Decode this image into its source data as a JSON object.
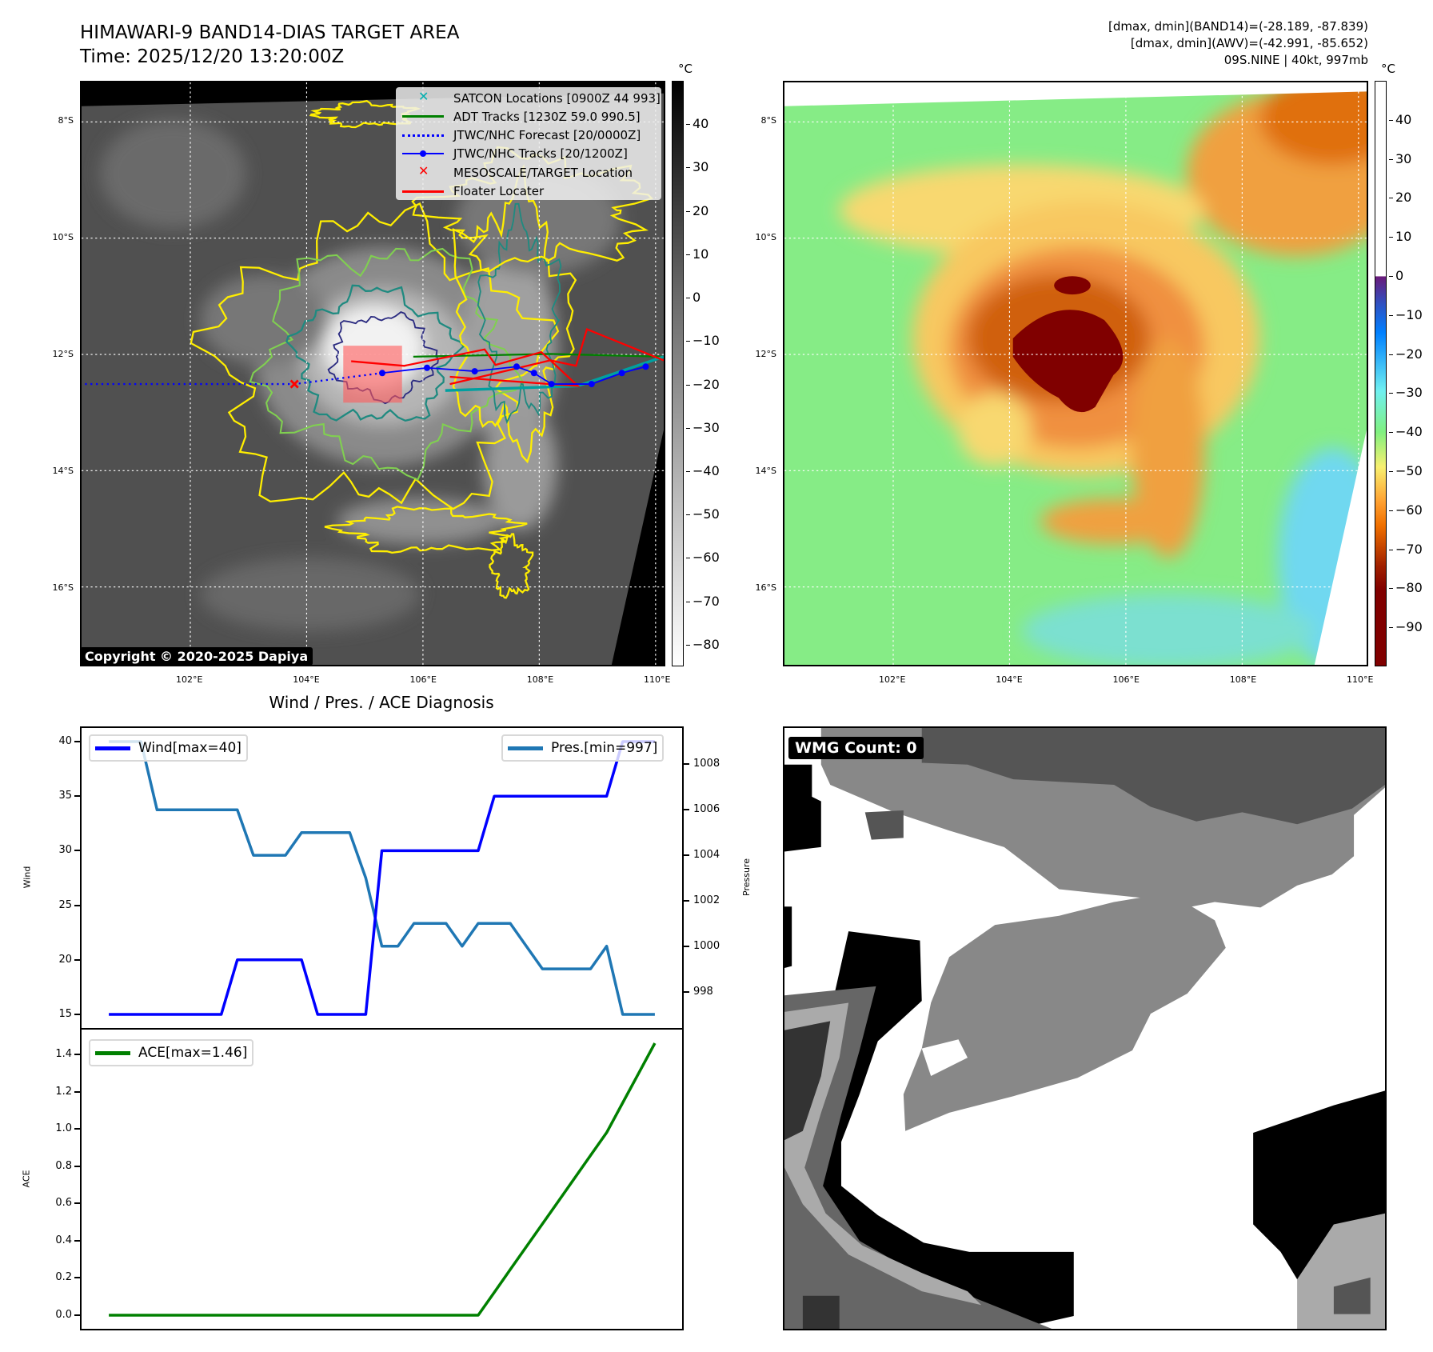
{
  "title": {
    "line1": "HIMAWARI-9 BAND14-DIAS TARGET AREA",
    "line2": "Time: 2025/12/20 13:20:00Z"
  },
  "info": {
    "line1": "[dmax, dmin](BAND14)=(-28.189, -87.839)",
    "line2": "[dmax, dmin](AWV)=(-42.991, -85.652)",
    "line3": "09S.NINE | 40kt, 997mb"
  },
  "maps": {
    "extent": {
      "lon": [
        100.13,
        110.14
      ],
      "lat": [
        -17.34,
        -7.32
      ]
    },
    "lat_values": [
      -8,
      -10,
      -12,
      -14,
      -16
    ],
    "lat_labels": [
      "8°S",
      "10°S",
      "12°S",
      "14°S",
      "16°S"
    ],
    "lon_values": [
      102,
      104,
      106,
      108,
      110
    ],
    "lon_labels": [
      "102°E",
      "104°E",
      "106°E",
      "108°E",
      "110°E"
    ]
  },
  "colorbar_left": {
    "unit": "°C",
    "range": [
      -85,
      50
    ],
    "values": [
      40,
      30,
      20,
      10,
      0,
      -10,
      -20,
      -30,
      -40,
      -50,
      -60,
      -70,
      -80
    ],
    "labels": [
      "40",
      "30",
      "20",
      "10",
      "0",
      "−10",
      "−20",
      "−30",
      "−40",
      "−50",
      "−60",
      "−70",
      "−80"
    ]
  },
  "colorbar_right": {
    "unit": "°C",
    "range": [
      -100,
      50
    ],
    "values": [
      40,
      30,
      20,
      10,
      0,
      -10,
      -20,
      -30,
      -40,
      -50,
      -60,
      -70,
      -80,
      -90
    ],
    "labels": [
      "40",
      "30",
      "20",
      "10",
      "0",
      "−10",
      "−20",
      "−30",
      "−40",
      "−50",
      "−60",
      "−70",
      "−80",
      "−90"
    ]
  },
  "legend": [
    {
      "label": "SATCON Locations [0900Z 44 993]",
      "icon": "cyan-x-marker"
    },
    {
      "label": "ADT Tracks [1230Z 59.0 990.5]",
      "icon": "green-line"
    },
    {
      "label": "JTWC/NHC Forecast [20/0000Z]",
      "icon": "blue-dotted-line"
    },
    {
      "label": "JTWC/NHC Tracks [20/1200Z]",
      "icon": "blue-line-dot"
    },
    {
      "label": "MESOSCALE/TARGET Location",
      "icon": "red-x-marker"
    },
    {
      "label": "Floater Locater",
      "icon": "red-line"
    }
  ],
  "tracks": {
    "jtwc": [
      [
        109.83,
        -12.21
      ],
      [
        109.42,
        -12.32
      ],
      [
        108.9,
        -12.51
      ],
      [
        108.21,
        -12.51
      ],
      [
        107.91,
        -12.32
      ],
      [
        107.61,
        -12.21
      ],
      [
        106.89,
        -12.29
      ],
      [
        106.07,
        -12.23
      ],
      [
        105.3,
        -12.32
      ]
    ],
    "forecast": [
      [
        105.3,
        -12.32
      ],
      [
        103.79,
        -12.51
      ],
      [
        100.13,
        -12.51
      ]
    ],
    "mesoscale": [
      103.79,
      -12.51
    ],
    "target_box": {
      "lon": [
        104.63,
        105.64
      ],
      "lat": [
        -12.83,
        -11.85
      ]
    }
  },
  "copyright": "Copyright © 2020-2025 Dapiya",
  "wmg": {
    "label": "WMG Count: 0"
  },
  "colors": {
    "wind": "#0000ff",
    "pres": "#1f77b4",
    "ace": "#008000",
    "contour_yellow": "#ffee00",
    "contour_green": "#80d050",
    "contour_teal": "#1f8a80",
    "contour_navy": "#2a2a80"
  },
  "chart_data": [
    {
      "type": "line",
      "title": "Wind / Pres. / ACE Diagnosis",
      "ylabel": "Wind",
      "y2label": "Pressure",
      "x": [
        0,
        1,
        2,
        3,
        4,
        5,
        6,
        7,
        8,
        9,
        10,
        11,
        12,
        13,
        14,
        15,
        16,
        17,
        18,
        19,
        20,
        21,
        22,
        23,
        24,
        25,
        26,
        27,
        28,
        29,
        30,
        31,
        32,
        33,
        34
      ],
      "xlim": [
        -1.7,
        35.7
      ],
      "ylim": [
        13.75,
        41.25
      ],
      "y2lim": [
        996.4,
        1009.6
      ],
      "yticks": [
        15,
        20,
        25,
        30,
        35,
        40
      ],
      "y2ticks": [
        998,
        1000,
        1002,
        1004,
        1006,
        1008
      ],
      "series": [
        {
          "name": "Wind[max=40]",
          "axis": "left",
          "values": [
            15,
            15,
            15,
            15,
            15,
            15,
            15,
            15,
            20,
            20,
            20,
            20,
            20,
            15,
            15,
            15,
            15,
            30,
            30,
            30,
            30,
            30,
            30,
            30,
            35,
            35,
            35,
            35,
            35,
            35,
            35,
            35,
            40,
            40,
            40
          ]
        },
        {
          "name": "Pres.[min=997]",
          "axis": "right",
          "values": [
            1009,
            1009,
            1009,
            1006,
            1006,
            1006,
            1006,
            1006,
            1006,
            1004,
            1004,
            1004,
            1005,
            1005,
            1005,
            1005,
            1003,
            1000,
            1000,
            1001,
            1001,
            1001,
            1000,
            1001,
            1001,
            1001,
            1000,
            999,
            999,
            999,
            999,
            1000,
            997,
            997,
            997
          ]
        }
      ],
      "legend": [
        "upper-left",
        "upper-right"
      ]
    },
    {
      "type": "line",
      "ylabel": "ACE",
      "x": [
        0,
        1,
        2,
        3,
        4,
        5,
        6,
        7,
        8,
        9,
        10,
        11,
        12,
        13,
        14,
        15,
        16,
        17,
        18,
        19,
        20,
        21,
        22,
        23,
        24,
        25,
        26,
        27,
        28,
        29,
        30,
        31,
        32,
        33,
        34
      ],
      "xlim": [
        -1.7,
        35.7
      ],
      "ylim": [
        -0.073,
        1.533
      ],
      "yticks": [
        0.0,
        0.2,
        0.4,
        0.6,
        0.8,
        1.0,
        1.2,
        1.4
      ],
      "ytick_labels": [
        "0.0",
        "0.2",
        "0.4",
        "0.6",
        "0.8",
        "1.0",
        "1.2",
        "1.4"
      ],
      "series": [
        {
          "name": "ACE[max=1.46]",
          "values": [
            0,
            0,
            0,
            0,
            0,
            0,
            0,
            0,
            0,
            0,
            0,
            0,
            0,
            0,
            0,
            0,
            0,
            0,
            0,
            0,
            0,
            0,
            0,
            0,
            0.1225,
            0.245,
            0.3675,
            0.49,
            0.6125,
            0.735,
            0.8575,
            0.98,
            1.14,
            1.3,
            1.46
          ]
        }
      ],
      "legend": "upper-left"
    }
  ]
}
